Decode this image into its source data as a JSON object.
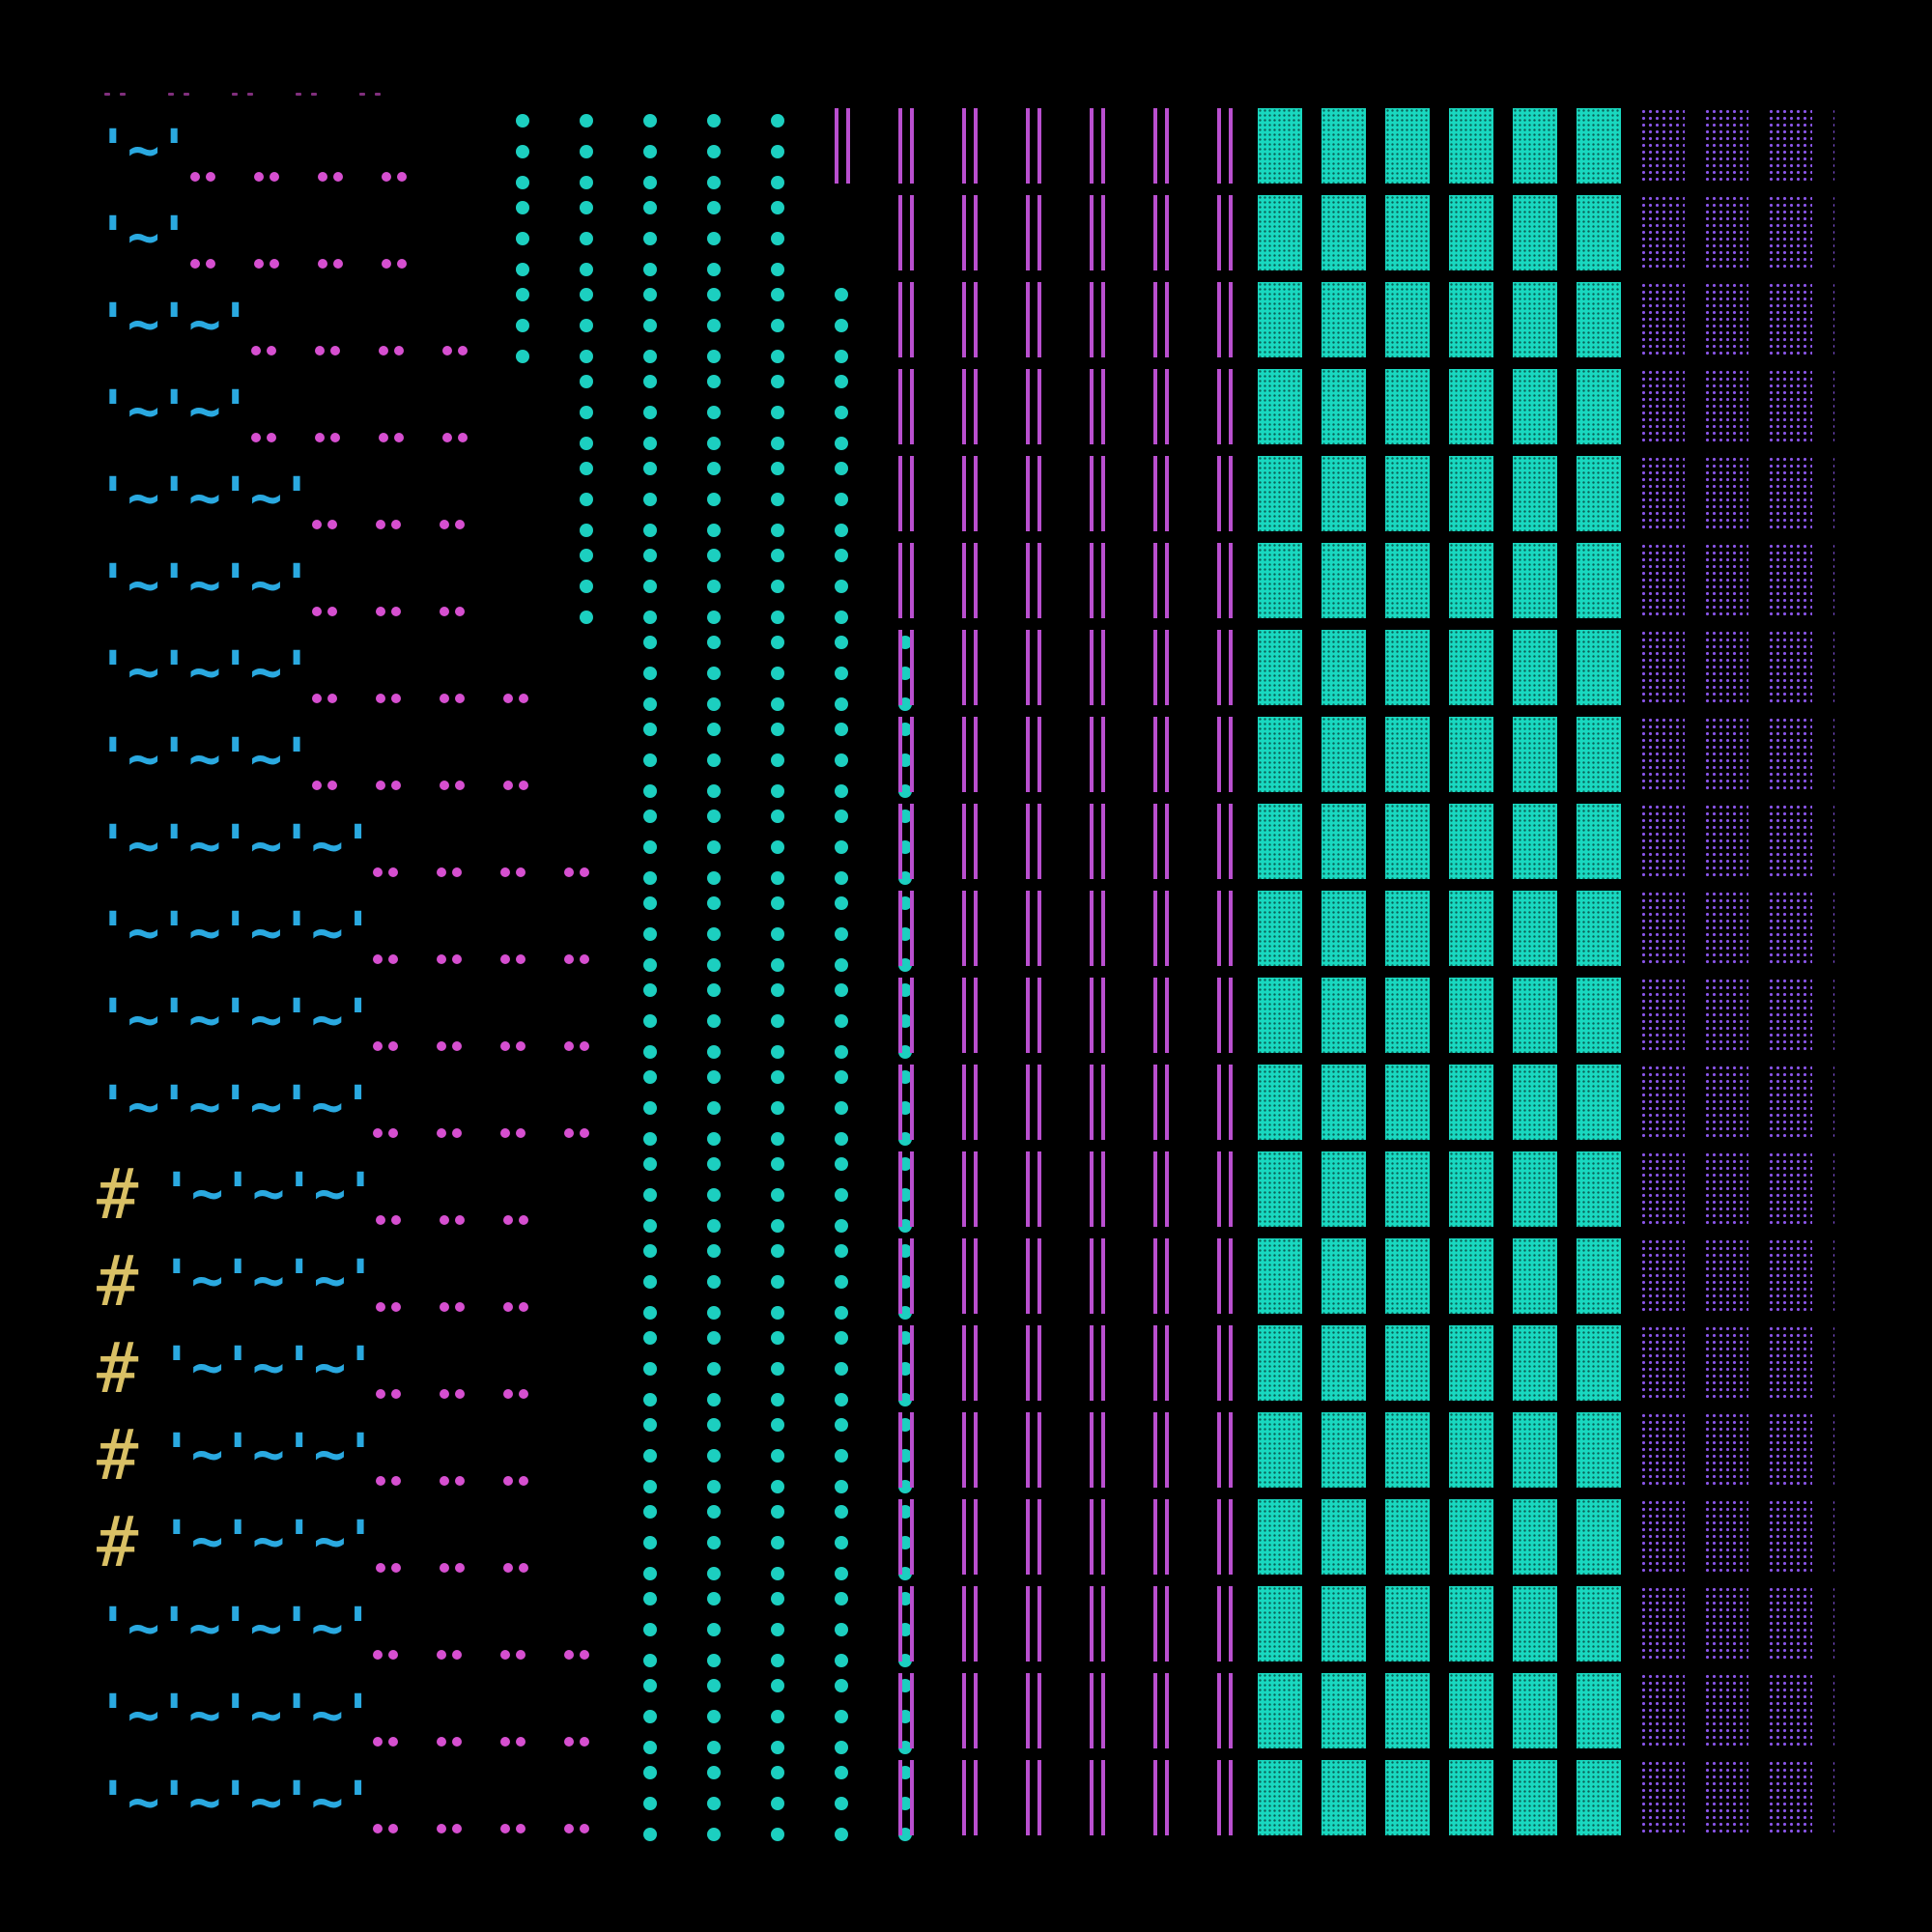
{
  "palette": {
    "background": "#000000",
    "tilde_text": "#2aa9e0",
    "hash_text": "#d9c065",
    "pink_dots": "#d64fd0",
    "teal_dots": "#1ccfc0",
    "magenta_bars": "#b94fcf",
    "teal_blocks": "#19d8c0",
    "violet_blocks": "#8a55e8"
  },
  "glyphs": {
    "hash": "#",
    "tilde_unit": "'~'",
    "pink_pair": "••",
    "teal_dot": "•",
    "bar_pair": "||",
    "dense_block": "▓",
    "sparse_block": "░"
  },
  "rows": [
    {
      "hash": false,
      "tilde": "'~'"
    },
    {
      "hash": false,
      "tilde": "'~'"
    },
    {
      "hash": false,
      "tilde": "'~'~'"
    },
    {
      "hash": false,
      "tilde": "'~'~'"
    },
    {
      "hash": false,
      "tilde": "'~'~'~'"
    },
    {
      "hash": false,
      "tilde": "'~'~'~'"
    },
    {
      "hash": false,
      "tilde": "'~'~'~'"
    },
    {
      "hash": false,
      "tilde": "'~'~'~'"
    },
    {
      "hash": false,
      "tilde": "'~'~'~'~'"
    },
    {
      "hash": false,
      "tilde": "'~'~'~'~'"
    },
    {
      "hash": false,
      "tilde": "'~'~'~'~'"
    },
    {
      "hash": false,
      "tilde": "'~'~'~'~'"
    },
    {
      "hash": true,
      "tilde": "'~'~'~'"
    },
    {
      "hash": true,
      "tilde": "'~'~'~'"
    },
    {
      "hash": true,
      "tilde": "'~'~'~'"
    },
    {
      "hash": true,
      "tilde": "'~'~'~'"
    },
    {
      "hash": true,
      "tilde": "'~'~'~'"
    },
    {
      "hash": false,
      "tilde": "'~'~'~'~'"
    },
    {
      "hash": false,
      "tilde": "'~'~'~'~'"
    },
    {
      "hash": false,
      "tilde": "'~'~'~'~'"
    }
  ]
}
